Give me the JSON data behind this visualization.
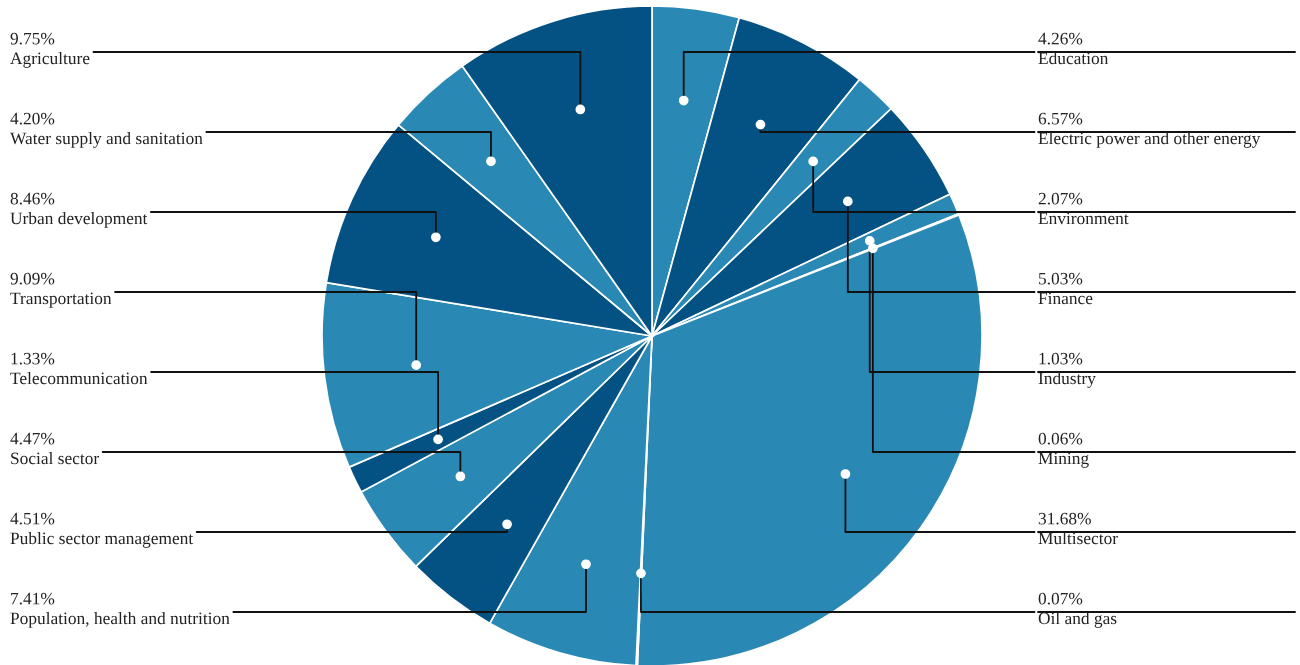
{
  "chart_data": {
    "type": "pie",
    "categories": [
      "Education",
      "Electric power and other energy",
      "Environment",
      "Finance",
      "Industry",
      "Mining",
      "Multisector",
      "Oil and gas",
      "Population, health and nutrition",
      "Public sector management",
      "Social sector",
      "Telecommunication",
      "Transportation",
      "Urban development",
      "Water supply and sanitation",
      "Agriculture"
    ],
    "values": [
      4.26,
      6.57,
      2.07,
      5.03,
      1.03,
      0.06,
      31.68,
      0.07,
      7.41,
      4.51,
      4.47,
      1.33,
      9.09,
      8.46,
      4.2,
      9.75
    ],
    "value_labels": [
      "4.26%",
      "6.57%",
      "2.07%",
      "5.03%",
      "1.03%",
      "0.06%",
      "31.68%",
      "0.07%",
      "7.41%",
      "4.51%",
      "4.47%",
      "1.33%",
      "9.09%",
      "8.46%",
      "4.20%",
      "9.75%"
    ],
    "colors": [
      "#2a88b5",
      "#045283",
      "#2a88b5",
      "#045283",
      "#2a88b5",
      "#045283",
      "#2a88b5",
      "#045283",
      "#2a88b5",
      "#045283",
      "#2a88b5",
      "#045283",
      "#2a88b5",
      "#045283",
      "#2a88b5",
      "#045283"
    ]
  }
}
